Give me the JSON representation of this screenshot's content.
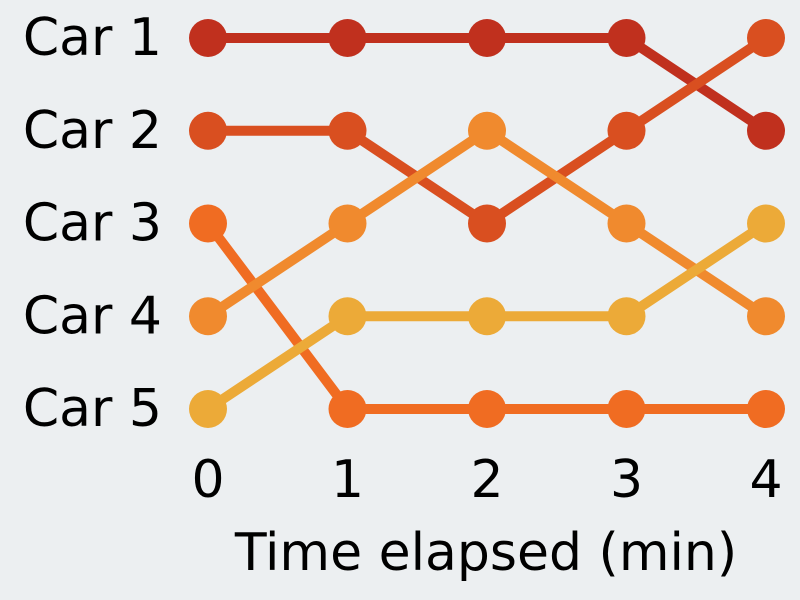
{
  "chart_data": {
    "type": "line",
    "title": "",
    "xlabel": "Time elapsed (min)",
    "ylabel": "",
    "x": [
      0,
      1,
      2,
      3,
      4
    ],
    "x_tick_labels": [
      "0",
      "1",
      "2",
      "3",
      "4"
    ],
    "y_tick_labels": [
      "Car 1",
      "Car 2",
      "Car 3",
      "Car 4",
      "Car 5"
    ],
    "y_axis_note": "rank position; 1 at top, 5 at bottom",
    "ylim": [
      1,
      5
    ],
    "xlim": [
      0,
      4
    ],
    "grid": false,
    "legend": "none",
    "series": [
      {
        "color": "#C0301E",
        "values": [
          1,
          1,
          1,
          1,
          2
        ]
      },
      {
        "color": "#D94F20",
        "values": [
          2,
          2,
          3,
          2,
          1
        ]
      },
      {
        "color": "#F06C22",
        "values": [
          3,
          5,
          5,
          5,
          5
        ]
      },
      {
        "color": "#F08A2E",
        "values": [
          4,
          3,
          2,
          3,
          4
        ]
      },
      {
        "color": "#ECAA38",
        "values": [
          5,
          4,
          4,
          4,
          3
        ]
      }
    ]
  }
}
